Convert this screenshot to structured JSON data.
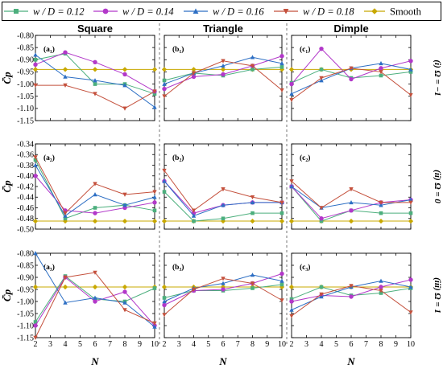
{
  "chart_data": {
    "type": "line",
    "legend": [
      {
        "label": "w / D = 0.12",
        "color": "#4caf7d",
        "marker": "square"
      },
      {
        "label": "w / D = 0.14",
        "color": "#b238c9",
        "marker": "circle"
      },
      {
        "label": "w / D = 0.16",
        "color": "#2d6fc4",
        "marker": "triangle-up"
      },
      {
        "label": "w / D = 0.18",
        "color": "#c4503c",
        "marker": "triangle-down"
      },
      {
        "label": "Smooth",
        "color": "#c8a800",
        "marker": "diamond"
      }
    ],
    "columns": [
      "Square",
      "Triangle",
      "Dimple"
    ],
    "rows": [
      {
        "label": "(i) Ω = −1",
        "ylim": [
          -1.15,
          -0.8
        ],
        "yticks": [
          "-0.80",
          "-0.85",
          "-0.90",
          "-0.95",
          "-1.00",
          "-1.05",
          "-1.10",
          "-1.15"
        ],
        "ylabel": "C̄p"
      },
      {
        "label": "(ii) Ω = 0",
        "ylim": [
          -0.5,
          -0.34
        ],
        "yticks": [
          "-0.34",
          "-0.36",
          "-0.38",
          "-0.40",
          "-0.42",
          "-0.44",
          "-0.46",
          "-0.48",
          "-0.50"
        ],
        "ylabel": "C̄p"
      },
      {
        "label": "(iii) Ω = 1",
        "ylim": [
          -1.15,
          -0.8
        ],
        "yticks": [
          "-0.80",
          "-0.85",
          "-0.90",
          "-0.95",
          "-1.00",
          "-1.05",
          "-1.10",
          "-1.15"
        ],
        "ylabel": "C̄p"
      }
    ],
    "xlabel": "N",
    "x": [
      2,
      4,
      6,
      8,
      10
    ],
    "xticks": [
      "2",
      "3",
      "4",
      "5",
      "6",
      "7",
      "8",
      "9",
      "10"
    ],
    "panels": [
      {
        "label": "(a₁)",
        "row": 0,
        "col": 0,
        "series": [
          [
            -0.9,
            -0.875,
            -1.0,
            -1.0,
            -1.04
          ],
          [
            -0.92,
            -0.87,
            -0.91,
            -0.96,
            -1.03
          ],
          [
            -0.88,
            -0.97,
            -0.985,
            -1.005,
            -1.095
          ],
          [
            -1.005,
            -1.005,
            -1.04,
            -1.1,
            -1.03
          ],
          [
            -0.94,
            -0.94,
            -0.94,
            -0.94,
            -0.94
          ]
        ]
      },
      {
        "label": "(b₁)",
        "row": 0,
        "col": 1,
        "series": [
          [
            -0.985,
            -0.955,
            -0.965,
            -0.94,
            -0.93
          ],
          [
            -1.02,
            -0.97,
            -0.96,
            -0.925,
            -0.885
          ],
          [
            -1.0,
            -0.955,
            -0.925,
            -0.89,
            -0.915
          ],
          [
            -1.05,
            -0.955,
            -0.905,
            -0.925,
            -1.025
          ],
          [
            -0.94,
            -0.94,
            -0.94,
            -0.94,
            -0.94
          ]
        ]
      },
      {
        "label": "(c₁)",
        "row": 0,
        "col": 2,
        "series": [
          [
            -0.995,
            -0.94,
            -0.975,
            -0.965,
            -0.95
          ],
          [
            -1.0,
            -0.855,
            -0.98,
            -0.935,
            -0.905
          ],
          [
            -1.04,
            -0.985,
            -0.935,
            -0.915,
            -0.94
          ],
          [
            -1.065,
            -0.975,
            -0.935,
            -0.95,
            -1.045
          ],
          [
            -0.94,
            -0.94,
            -0.94,
            -0.94,
            -0.94
          ]
        ]
      },
      {
        "label": "(a₂)",
        "row": 1,
        "col": 0,
        "series": [
          [
            -0.37,
            -0.48,
            -0.46,
            -0.455,
            -0.465
          ],
          [
            -0.4,
            -0.465,
            -0.47,
            -0.46,
            -0.45
          ],
          [
            -0.38,
            -0.475,
            -0.435,
            -0.455,
            -0.44
          ],
          [
            -0.365,
            -0.47,
            -0.415,
            -0.435,
            -0.43
          ],
          [
            -0.485,
            -0.485,
            -0.485,
            -0.485,
            -0.485
          ]
        ]
      },
      {
        "label": "(b₂)",
        "row": 1,
        "col": 1,
        "series": [
          [
            -0.43,
            -0.485,
            -0.48,
            -0.47,
            -0.47
          ],
          [
            -0.41,
            -0.47,
            -0.455,
            -0.45,
            -0.45
          ],
          [
            -0.41,
            -0.475,
            -0.455,
            -0.45,
            -0.45
          ],
          [
            -0.39,
            -0.465,
            -0.425,
            -0.44,
            -0.45
          ],
          [
            -0.485,
            -0.485,
            -0.485,
            -0.485,
            -0.485
          ]
        ]
      },
      {
        "label": "(c₂)",
        "row": 1,
        "col": 2,
        "series": [
          [
            -0.42,
            -0.485,
            -0.465,
            -0.47,
            -0.47
          ],
          [
            -0.42,
            -0.48,
            -0.465,
            -0.45,
            -0.445
          ],
          [
            -0.42,
            -0.46,
            -0.45,
            -0.455,
            -0.445
          ],
          [
            -0.41,
            -0.46,
            -0.425,
            -0.45,
            -0.45
          ],
          [
            -0.485,
            -0.485,
            -0.485,
            -0.485,
            -0.485
          ]
        ]
      },
      {
        "label": "(a₃)",
        "row": 2,
        "col": 0,
        "series": [
          [
            -1.085,
            -0.895,
            -0.99,
            -1.0,
            -0.945
          ],
          [
            -1.1,
            -0.9,
            -1.0,
            -0.96,
            -1.1
          ],
          [
            -0.8,
            -1.005,
            -0.985,
            -1.005,
            -1.105
          ],
          [
            -1.15,
            -0.9,
            -0.88,
            -1.035,
            -1.09
          ],
          [
            -0.94,
            -0.94,
            -0.94,
            -0.94,
            -0.94
          ]
        ]
      },
      {
        "label": "(b₃)",
        "row": 2,
        "col": 1,
        "series": [
          [
            -0.985,
            -0.955,
            -0.955,
            -0.945,
            -0.93
          ],
          [
            -1.015,
            -0.955,
            -0.95,
            -0.925,
            -0.885
          ],
          [
            -1.0,
            -0.945,
            -0.925,
            -0.89,
            -0.915
          ],
          [
            -1.055,
            -0.95,
            -0.905,
            -0.925,
            -0.995
          ],
          [
            -0.94,
            -0.94,
            -0.94,
            -0.94,
            -0.94
          ]
        ]
      },
      {
        "label": "(c₃)",
        "row": 2,
        "col": 2,
        "series": [
          [
            -0.99,
            -0.94,
            -0.975,
            -0.965,
            -0.945
          ],
          [
            -1.0,
            -0.975,
            -0.98,
            -0.94,
            -0.91
          ],
          [
            -1.035,
            -0.98,
            -0.94,
            -0.915,
            -0.94
          ],
          [
            -1.06,
            -0.97,
            -0.935,
            -0.955,
            -1.045
          ],
          [
            -0.94,
            -0.94,
            -0.94,
            -0.94,
            -0.94
          ]
        ]
      }
    ]
  }
}
